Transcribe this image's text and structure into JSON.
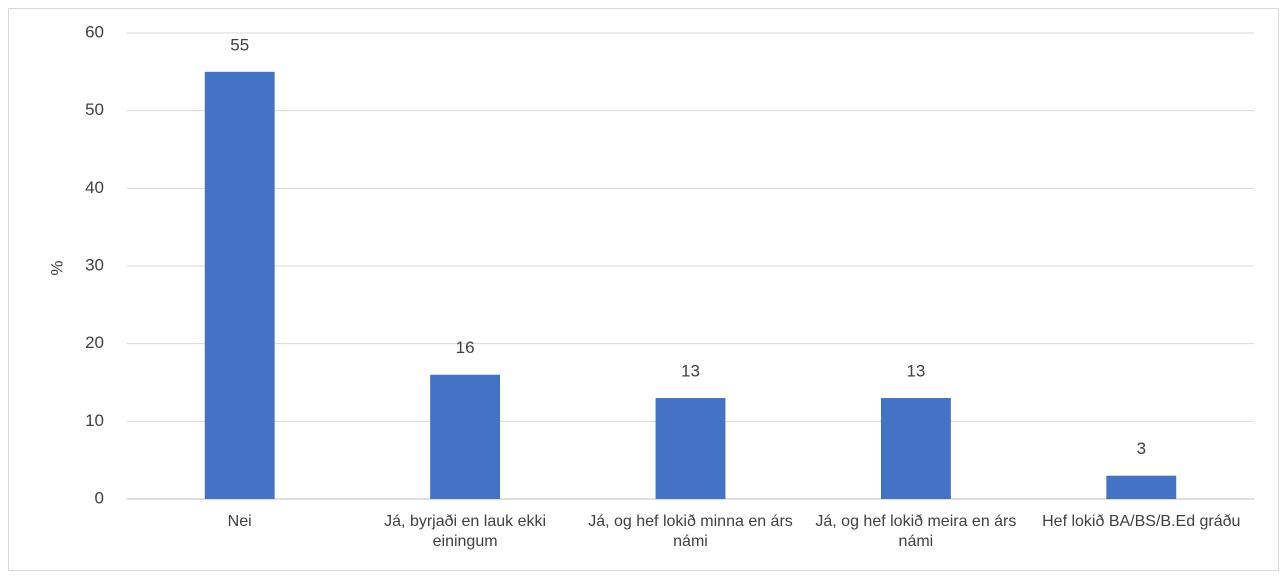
{
  "chart_data": {
    "type": "bar",
    "ylabel": "%",
    "categories": [
      "Nei",
      "Já, byrjaði en lauk ekki einingum",
      "Já, og hef lokið minna en árs námi",
      "Já, og hef lokið meira en árs námi",
      "Hef lokið BA/BS/B.Ed gráðu"
    ],
    "values": [
      55,
      16,
      13,
      13,
      3
    ],
    "color": "#4472c4",
    "ylim": [
      0,
      60
    ],
    "yticks": [
      0,
      10,
      20,
      30,
      40,
      50,
      60
    ],
    "grid": true
  }
}
